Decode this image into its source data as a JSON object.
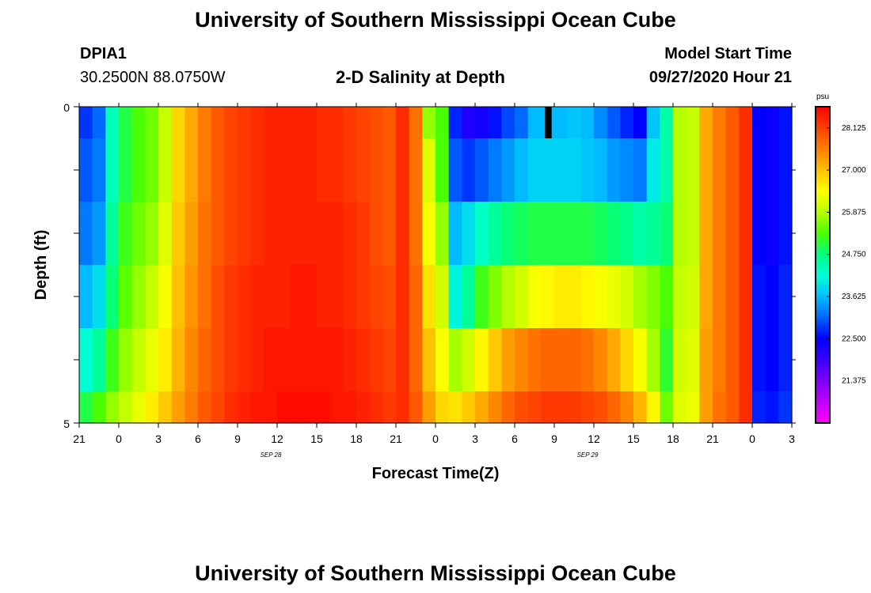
{
  "header": {
    "title_top": "University of Southern Mississippi Ocean Cube",
    "station_id": "DPIA1",
    "station_coords": "30.2500N 88.0750W",
    "plot_title": "2-D Salinity at Depth",
    "model_start_label": "Model Start Time",
    "model_start_value": "09/27/2020 Hour 21",
    "title_bottom": "University of Southern Mississippi Ocean Cube"
  },
  "colors": {
    "palette": [
      "#ff00ff",
      "#c000ff",
      "#7f00ff",
      "#3a00ff",
      "#0000ff",
      "#0064ff",
      "#00bfff",
      "#00ffd9",
      "#00ff80",
      "#4cff00",
      "#b3ff00",
      "#ffff00",
      "#ffc000",
      "#ff8000",
      "#ff4000",
      "#ff0000"
    ],
    "gap": "#000000"
  },
  "chart_data": {
    "type": "heatmap",
    "title": "2-D Salinity at Depth",
    "xlabel": "Forecast Time(Z)",
    "ylabel": "Depth (ft)",
    "x_tick_labels": [
      "21",
      "0",
      "3",
      "6",
      "9",
      "12",
      "15",
      "18",
      "21",
      "0",
      "3",
      "6",
      "9",
      "12",
      "15",
      "18",
      "21",
      "0",
      "3"
    ],
    "date_labels": [
      {
        "label": "SEP 28",
        "at_hours_from_start": 15
      },
      {
        "label": "SEP 29",
        "at_hours_from_start": 39
      }
    ],
    "x_range_hours": [
      0,
      54
    ],
    "y_tick_labels": [
      "0",
      "5"
    ],
    "ylim": [
      0,
      5
    ],
    "depth_layers_ft": [
      [
        0,
        0.5
      ],
      [
        0.5,
        1.5
      ],
      [
        1.5,
        2.5
      ],
      [
        2.5,
        3.5
      ],
      [
        3.5,
        4.5
      ],
      [
        4.5,
        5
      ]
    ],
    "colorbar": {
      "unit": "psu",
      "min": 20.25,
      "max": 28.69,
      "tick_values": [
        "28.125",
        "27.000",
        "25.875",
        "24.750",
        "23.625",
        "22.500",
        "21.375"
      ]
    },
    "hours": [
      0,
      1,
      2,
      3,
      4,
      5,
      6,
      7,
      8,
      9,
      10,
      11,
      12,
      13,
      14,
      15,
      16,
      17,
      18,
      19,
      20,
      21,
      22,
      23,
      24,
      25,
      26,
      27,
      28,
      29,
      30,
      31,
      32,
      33,
      34,
      35,
      36,
      37,
      38,
      39,
      40,
      41,
      42,
      43,
      44,
      45,
      46,
      47,
      48,
      49,
      50,
      51,
      52,
      53
    ],
    "salinity_psu": [
      [
        22.8,
        23.1,
        24.4,
        25.0,
        25.3,
        25.5,
        26.0,
        26.8,
        27.2,
        27.6,
        27.9,
        28.1,
        28.2,
        28.3,
        28.4,
        28.4,
        28.4,
        28.4,
        28.3,
        28.3,
        28.2,
        28.1,
        28.0,
        27.9,
        28.3,
        27.7,
        25.7,
        25.3,
        22.7,
        22.2,
        22.3,
        22.6,
        22.9,
        23.1,
        23.6,
        23.6,
        23.6,
        23.7,
        23.6,
        23.3,
        23.0,
        22.7,
        22.5,
        23.7,
        24.5,
        25.9,
        26.0,
        27.2,
        27.6,
        27.9,
        28.3,
        22.5,
        22.4,
        22.6
      ],
      [
        23.0,
        23.2,
        24.4,
        25.0,
        25.3,
        25.5,
        26.0,
        26.8,
        27.2,
        27.6,
        27.9,
        28.1,
        28.2,
        28.3,
        28.4,
        28.4,
        28.4,
        28.4,
        28.3,
        28.3,
        28.2,
        28.1,
        28.0,
        27.9,
        28.3,
        27.7,
        26.2,
        25.3,
        23.0,
        22.8,
        23.0,
        23.2,
        23.4,
        23.6,
        23.8,
        23.8,
        23.8,
        23.8,
        23.7,
        23.6,
        23.4,
        23.3,
        23.2,
        24.0,
        24.5,
        25.9,
        26.0,
        27.2,
        27.6,
        27.9,
        28.3,
        22.5,
        22.4,
        22.6
      ],
      [
        23.2,
        23.4,
        24.6,
        25.2,
        25.5,
        25.7,
        26.2,
        26.9,
        27.3,
        27.7,
        27.9,
        28.1,
        28.2,
        28.3,
        28.4,
        28.4,
        28.4,
        28.4,
        28.4,
        28.4,
        28.3,
        28.2,
        28.0,
        27.9,
        28.3,
        27.7,
        26.4,
        25.7,
        23.6,
        23.9,
        24.3,
        24.6,
        24.8,
        24.9,
        25.0,
        25.0,
        25.0,
        25.0,
        25.0,
        24.9,
        24.8,
        24.7,
        24.5,
        24.6,
        24.8,
        25.9,
        26.0,
        27.2,
        27.6,
        27.9,
        28.3,
        22.5,
        22.4,
        22.6
      ],
      [
        23.6,
        23.9,
        24.8,
        25.4,
        25.7,
        26.0,
        26.4,
        27.0,
        27.4,
        27.7,
        28.0,
        28.2,
        28.3,
        28.4,
        28.4,
        28.4,
        28.5,
        28.5,
        28.4,
        28.4,
        28.3,
        28.2,
        28.1,
        28.0,
        28.3,
        27.8,
        26.7,
        26.1,
        24.1,
        24.6,
        25.2,
        25.6,
        25.9,
        26.1,
        26.4,
        26.5,
        26.6,
        26.6,
        26.5,
        26.4,
        26.3,
        26.1,
        25.8,
        25.6,
        25.3,
        26.0,
        26.1,
        27.2,
        27.6,
        27.9,
        28.3,
        22.6,
        22.5,
        22.7
      ],
      [
        24.2,
        24.6,
        25.2,
        25.7,
        26.0,
        26.3,
        26.6,
        27.1,
        27.5,
        27.8,
        28.0,
        28.2,
        28.3,
        28.4,
        28.5,
        28.5,
        28.5,
        28.5,
        28.5,
        28.5,
        28.4,
        28.3,
        28.2,
        28.1,
        28.3,
        27.8,
        27.0,
        26.4,
        25.8,
        26.1,
        26.5,
        26.9,
        27.3,
        27.5,
        27.7,
        27.8,
        27.8,
        27.8,
        27.7,
        27.5,
        27.2,
        26.8,
        26.4,
        25.8,
        25.1,
        26.1,
        26.2,
        27.3,
        27.6,
        27.9,
        28.3,
        22.6,
        22.5,
        22.7
      ],
      [
        25.0,
        25.3,
        25.7,
        26.0,
        26.3,
        26.6,
        26.9,
        27.3,
        27.6,
        27.9,
        28.1,
        28.3,
        28.4,
        28.5,
        28.5,
        28.6,
        28.6,
        28.6,
        28.6,
        28.5,
        28.5,
        28.4,
        28.3,
        28.2,
        28.3,
        27.9,
        27.3,
        26.8,
        26.7,
        26.9,
        27.2,
        27.5,
        27.8,
        28.0,
        28.1,
        28.2,
        28.2,
        28.2,
        28.1,
        28.0,
        27.8,
        27.5,
        27.1,
        26.5,
        25.5,
        26.2,
        26.3,
        27.3,
        27.7,
        27.9,
        28.3,
        22.7,
        22.6,
        22.8
      ]
    ]
  }
}
